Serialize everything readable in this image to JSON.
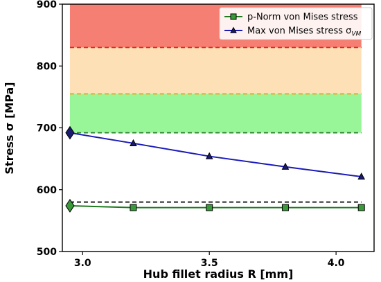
{
  "chart_data": {
    "type": "line",
    "xlabel": "Hub fillet radius R [mm]",
    "ylabel": "Stress σ [MPa]",
    "xlim": [
      2.92,
      4.15
    ],
    "ylim": [
      500,
      900
    ],
    "x_ticks": [
      "3.0",
      "3.5",
      "4.0"
    ],
    "y_ticks": [
      "500",
      "600",
      "700",
      "800",
      "900"
    ],
    "x_tick_values": [
      3.0,
      3.5,
      4.0
    ],
    "y_tick_values": [
      500,
      600,
      700,
      800,
      900
    ],
    "legend_position": "top-right",
    "bands": [
      {
        "from": 692,
        "to": 755,
        "color": "#98f598",
        "line_color": "#2e7d32"
      },
      {
        "from": 755,
        "to": 830,
        "color": "#fde0b5",
        "line_color": "#ff9f1c"
      },
      {
        "from": 830,
        "to": 900,
        "color": "#f47f72",
        "line_color": "#e8201c"
      }
    ],
    "reference_line": {
      "y": 580,
      "color": "#000000"
    },
    "series": [
      {
        "name": "p-Norm von Mises stress",
        "color": "#1f7a1f",
        "marker": "square",
        "marker_color": "#3a9a3a",
        "x": [
          2.95,
          3.2,
          3.5,
          3.8,
          4.1
        ],
        "y": [
          574,
          571,
          571,
          571,
          571
        ],
        "highlight_first": true
      },
      {
        "name": "Max von Mises stress σ",
        "name_subscript": "VM",
        "color": "#1a1ab8",
        "marker": "triangle",
        "marker_color": "#1a1a6e",
        "x": [
          2.95,
          3.2,
          3.5,
          3.8,
          4.1
        ],
        "y": [
          692,
          675,
          654,
          637,
          621
        ],
        "highlight_first": true
      }
    ]
  }
}
